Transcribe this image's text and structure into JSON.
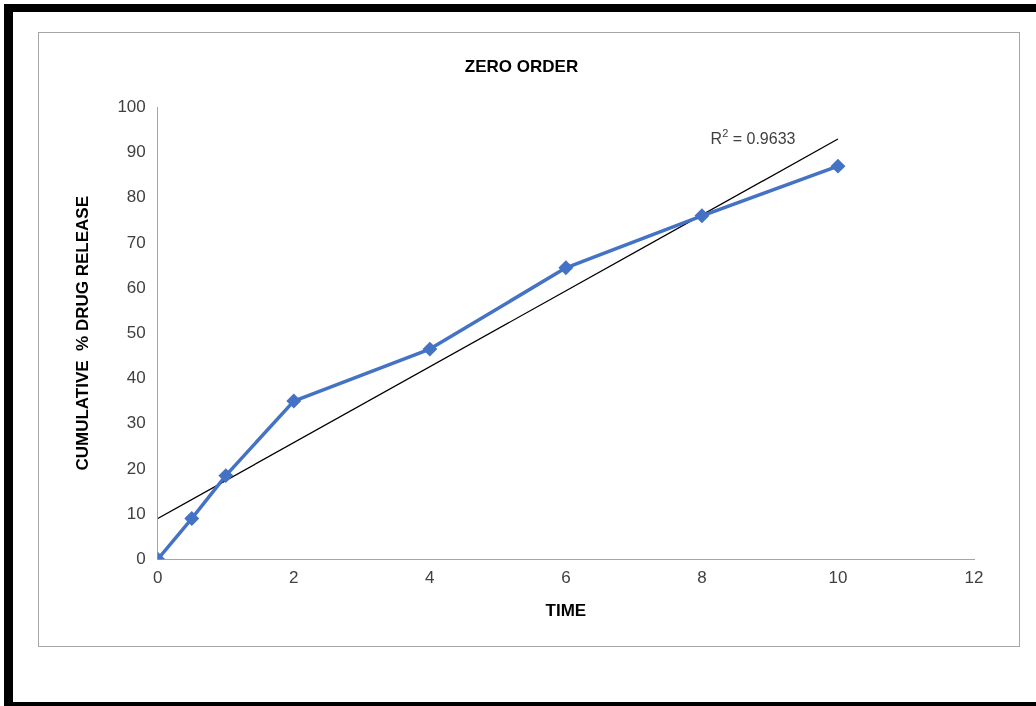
{
  "chart_data": {
    "type": "line",
    "title": "ZERO ORDER",
    "xlabel": "TIME",
    "ylabel": "CUMULATIVE  % DRUG RELEASE",
    "xlim": [
      0,
      12
    ],
    "xticks": [
      0,
      2,
      4,
      6,
      8,
      10,
      12
    ],
    "ylim": [
      0,
      100
    ],
    "yticks": [
      0,
      10,
      20,
      30,
      40,
      50,
      60,
      70,
      80,
      90,
      100
    ],
    "grid": false,
    "series": [
      {
        "x": [
          0,
          0.5,
          1,
          2,
          4,
          6,
          8,
          10
        ],
        "values": [
          0,
          9,
          18.5,
          35,
          46.5,
          64.5,
          76,
          87
        ],
        "color": "#4472c4",
        "marker": "diamond"
      },
      {
        "type": "line",
        "x": [
          0,
          10
        ],
        "values": [
          9,
          93
        ],
        "color": "#000000",
        "marker": "none"
      }
    ],
    "annotations": [
      "R$^{2}$ = 0.9633"
    ]
  }
}
